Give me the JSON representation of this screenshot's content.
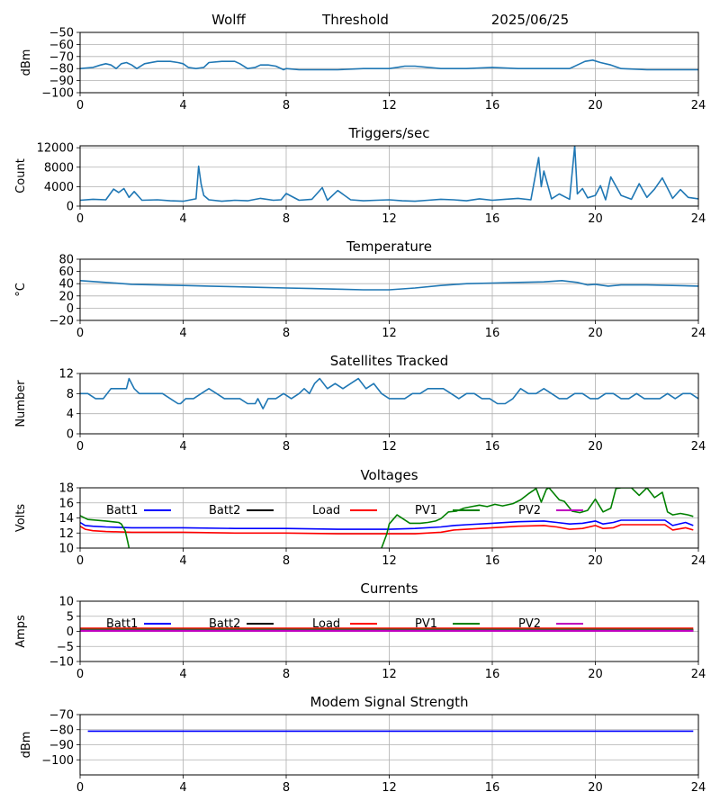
{
  "header": {
    "station": "Wolff",
    "mode": "Threshold",
    "date": "2025/06/25"
  },
  "colors": {
    "series_default": "#1f77b4",
    "batt1": "#0000ff",
    "batt2": "#000000",
    "load": "#ff0000",
    "pv1": "#008000",
    "pv2": "#bf00bf",
    "grid": "#b0b0b0"
  },
  "chart_data": [
    {
      "id": "signal",
      "type": "line",
      "title": "",
      "xlabel": "",
      "ylabel": "dBm",
      "xlim": [
        0,
        24
      ],
      "ylim": [
        -100,
        -50
      ],
      "xticks": [
        0,
        4,
        8,
        12,
        16,
        20,
        24
      ],
      "yticks": [
        -100,
        -90,
        -80,
        -70,
        -60,
        -50
      ],
      "grid": true,
      "series": [
        {
          "name": "",
          "color": "#1f77b4",
          "x": [
            0,
            0.5,
            0.8,
            1.0,
            1.2,
            1.4,
            1.6,
            1.8,
            2.0,
            2.2,
            2.5,
            3.0,
            3.5,
            3.8,
            4.0,
            4.2,
            4.5,
            4.8,
            5.0,
            5.5,
            6.0,
            6.2,
            6.5,
            6.8,
            7.0,
            7.3,
            7.6,
            7.9,
            8.0,
            8.5,
            9,
            10,
            11,
            12,
            12.3,
            12.6,
            13,
            14,
            15,
            16,
            17,
            18,
            19,
            19.3,
            19.6,
            19.9,
            20.2,
            20.6,
            21,
            22,
            23,
            24
          ],
          "y": [
            -80,
            -79,
            -77,
            -76,
            -77,
            -80,
            -76,
            -75,
            -77,
            -80,
            -76,
            -74,
            -74,
            -75,
            -76,
            -79,
            -80,
            -79,
            -75,
            -74,
            -74,
            -76,
            -80,
            -79,
            -77,
            -77,
            -78,
            -81,
            -80,
            -81,
            -81,
            -81,
            -80,
            -80,
            -79,
            -78,
            -78,
            -80,
            -80,
            -79,
            -80,
            -80,
            -80,
            -77,
            -74,
            -73,
            -75,
            -77,
            -80,
            -81,
            -81,
            -81
          ]
        }
      ]
    },
    {
      "id": "triggers",
      "type": "line",
      "title": "Triggers/sec",
      "xlabel": "",
      "ylabel": "Count",
      "xlim": [
        0,
        24
      ],
      "ylim": [
        0,
        12400
      ],
      "xticks": [
        0,
        4,
        8,
        12,
        16,
        20,
        24
      ],
      "yticks": [
        0,
        4000,
        8000,
        12000
      ],
      "grid": true,
      "series": [
        {
          "name": "",
          "color": "#1f77b4",
          "x": [
            0,
            0.5,
            1.0,
            1.3,
            1.5,
            1.7,
            1.9,
            2.1,
            2.4,
            3,
            3.5,
            4,
            4.5,
            4.6,
            4.7,
            4.8,
            5.0,
            5.5,
            6,
            6.5,
            7,
            7.5,
            7.8,
            8,
            8.5,
            9,
            9.4,
            9.6,
            10,
            10.5,
            11,
            11.5,
            12,
            12.5,
            13,
            13.5,
            14,
            14.5,
            15,
            15.5,
            16,
            16.5,
            17,
            17.5,
            17.8,
            17.9,
            18.0,
            18.3,
            18.6,
            19.0,
            19.2,
            19.3,
            19.5,
            19.7,
            20,
            20.2,
            20.4,
            20.6,
            21,
            21.4,
            21.7,
            22,
            22.3,
            22.6,
            23,
            23.3,
            23.6,
            24
          ],
          "y": [
            1200,
            1400,
            1300,
            3500,
            2800,
            3600,
            1800,
            3000,
            1200,
            1300,
            1100,
            1000,
            1500,
            8200,
            4500,
            2200,
            1300,
            1000,
            1200,
            1100,
            1600,
            1200,
            1300,
            2600,
            1200,
            1400,
            3800,
            1200,
            3200,
            1300,
            1100,
            1200,
            1300,
            1100,
            1000,
            1200,
            1400,
            1300,
            1100,
            1500,
            1200,
            1400,
            1600,
            1300,
            10000,
            4000,
            7200,
            1500,
            2500,
            1400,
            12400,
            2500,
            3600,
            1700,
            2200,
            4200,
            1300,
            6000,
            2200,
            1400,
            4600,
            1800,
            3500,
            5800,
            1600,
            3400,
            1800,
            1500
          ]
        }
      ]
    },
    {
      "id": "temperature",
      "type": "line",
      "title": "Temperature",
      "xlabel": "",
      "ylabel": "°C",
      "xlim": [
        0,
        24
      ],
      "ylim": [
        -20,
        80
      ],
      "xticks": [
        0,
        4,
        8,
        12,
        16,
        20,
        24
      ],
      "yticks": [
        -20,
        0,
        20,
        40,
        60,
        80
      ],
      "grid": true,
      "series": [
        {
          "name": "",
          "color": "#1f77b4",
          "x": [
            0,
            1,
            2,
            3,
            4,
            5,
            6,
            7,
            8,
            9,
            10,
            11,
            12,
            13,
            14,
            15,
            16,
            17,
            18,
            18.7,
            19.3,
            19.7,
            20,
            20.5,
            21,
            22,
            23,
            24
          ],
          "y": [
            45,
            42,
            39,
            38,
            37,
            36,
            35,
            34,
            33,
            32,
            31,
            30,
            30,
            33,
            37,
            40,
            41,
            42,
            43,
            45,
            42,
            38,
            39,
            36,
            38,
            38,
            37,
            36
          ]
        }
      ]
    },
    {
      "id": "satellites",
      "type": "line",
      "title": "Satellites Tracked",
      "xlabel": "",
      "ylabel": "Number",
      "xlim": [
        0,
        24
      ],
      "ylim": [
        0,
        12
      ],
      "xticks": [
        0,
        4,
        8,
        12,
        16,
        20,
        24
      ],
      "yticks": [
        0,
        4,
        8,
        12
      ],
      "grid": true,
      "series": [
        {
          "name": "",
          "color": "#1f77b4",
          "x": [
            0,
            0.3,
            0.6,
            0.9,
            1.2,
            1.5,
            1.8,
            1.9,
            2.1,
            2.3,
            2.6,
            2.9,
            3.2,
            3.5,
            3.8,
            3.9,
            4.1,
            4.4,
            4.7,
            5.0,
            5.3,
            5.6,
            5.9,
            6.2,
            6.5,
            6.8,
            6.9,
            7.1,
            7.3,
            7.6,
            7.9,
            8.2,
            8.5,
            8.7,
            8.9,
            9.1,
            9.3,
            9.6,
            9.9,
            10.2,
            10.5,
            10.8,
            11.1,
            11.4,
            11.7,
            12.0,
            12.3,
            12.6,
            12.9,
            13.2,
            13.5,
            13.8,
            14.1,
            14.4,
            14.7,
            15.0,
            15.3,
            15.6,
            15.9,
            16.2,
            16.5,
            16.8,
            17.1,
            17.4,
            17.7,
            18.0,
            18.3,
            18.6,
            18.9,
            19.2,
            19.5,
            19.8,
            20.1,
            20.4,
            20.7,
            21.0,
            21.3,
            21.6,
            21.9,
            22.2,
            22.5,
            22.8,
            23.1,
            23.4,
            23.7,
            24
          ],
          "y": [
            8,
            8,
            7,
            7,
            9,
            9,
            9,
            11,
            9,
            8,
            8,
            8,
            8,
            7,
            6,
            6,
            7,
            7,
            8,
            9,
            8,
            7,
            7,
            7,
            6,
            6,
            7,
            5,
            7,
            7,
            8,
            7,
            8,
            9,
            8,
            10,
            11,
            9,
            10,
            9,
            10,
            11,
            9,
            10,
            8,
            7,
            7,
            7,
            8,
            8,
            9,
            9,
            9,
            8,
            7,
            8,
            8,
            7,
            7,
            6,
            6,
            7,
            9,
            8,
            8,
            9,
            8,
            7,
            7,
            8,
            8,
            7,
            7,
            8,
            8,
            7,
            7,
            8,
            7,
            7,
            7,
            8,
            7,
            8,
            8,
            7
          ]
        }
      ]
    },
    {
      "id": "voltages",
      "type": "line",
      "title": "Voltages",
      "xlabel": "",
      "ylabel": "Volts",
      "xlim": [
        0,
        24
      ],
      "ylim": [
        10,
        18
      ],
      "xticks": [
        0,
        4,
        8,
        12,
        16,
        20,
        24
      ],
      "yticks": [
        10,
        12,
        14,
        16,
        18
      ],
      "grid": true,
      "legend": "inline-top",
      "series": [
        {
          "name": "Batt1",
          "color": "#0000ff",
          "x": [
            0,
            0.2,
            0.5,
            1,
            2,
            4,
            6,
            8,
            10,
            12,
            13,
            14,
            14.5,
            15,
            16,
            17,
            18,
            18.5,
            19,
            19.5,
            20,
            20.3,
            20.7,
            21,
            22,
            22.7,
            23,
            23.5,
            23.8
          ],
          "y": [
            13.4,
            13.0,
            12.9,
            12.8,
            12.7,
            12.7,
            12.6,
            12.6,
            12.5,
            12.5,
            12.6,
            12.8,
            13.0,
            13.1,
            13.3,
            13.5,
            13.6,
            13.4,
            13.2,
            13.3,
            13.6,
            13.2,
            13.4,
            13.7,
            13.7,
            13.7,
            13.0,
            13.4,
            13.0
          ]
        },
        {
          "name": "Batt2",
          "color": "#000000",
          "x": [],
          "y": []
        },
        {
          "name": "Load",
          "color": "#ff0000",
          "x": [
            0,
            0.2,
            0.5,
            1,
            2,
            4,
            6,
            8,
            10,
            12,
            13,
            14,
            14.5,
            15,
            16,
            17,
            18,
            18.5,
            19,
            19.5,
            20,
            20.3,
            20.7,
            21,
            22,
            22.7,
            23,
            23.5,
            23.8
          ],
          "y": [
            12.9,
            12.5,
            12.3,
            12.2,
            12.1,
            12.1,
            12.0,
            12.0,
            11.9,
            11.9,
            11.9,
            12.1,
            12.4,
            12.5,
            12.7,
            12.9,
            13.0,
            12.8,
            12.5,
            12.6,
            13.0,
            12.6,
            12.7,
            13.1,
            13.1,
            13.1,
            12.4,
            12.7,
            12.4
          ]
        },
        {
          "name": "PV1",
          "color": "#008000",
          "x": [
            0,
            0.3,
            1,
            1.5,
            1.6,
            1.75,
            1.85,
            1.9
          ],
          "y": [
            14.3,
            13.8,
            13.6,
            13.4,
            13.2,
            12.3,
            10.8,
            10
          ],
          "x2": [
            11.7,
            11.9,
            12.0,
            12.3,
            12.8,
            13.2,
            13.5,
            13.8,
            14.0,
            14.3,
            14.6,
            14.9,
            15.2,
            15.5,
            15.8,
            16.1,
            16.4,
            16.8,
            17.1,
            17.4,
            17.7,
            17.9,
            18.1,
            18.2,
            18.6,
            18.8,
            19.1,
            19.4,
            19.7,
            20.0,
            20.3,
            20.6,
            20.8,
            21.0,
            21.4,
            21.7,
            22.0,
            22.3,
            22.6,
            22.8,
            23.0,
            23.3,
            23.6,
            23.8
          ],
          "y2": [
            10,
            11.8,
            13.2,
            14.4,
            13.3,
            13.3,
            13.4,
            13.6,
            13.9,
            14.8,
            14.9,
            15.3,
            15.5,
            15.7,
            15.5,
            15.8,
            15.6,
            15.9,
            16.4,
            17.2,
            17.9,
            16.1,
            17.8,
            18.0,
            16.4,
            16.2,
            14.9,
            14.7,
            15.0,
            16.5,
            14.8,
            15.3,
            17.9,
            18.0,
            18.0,
            17.0,
            18.0,
            16.7,
            17.4,
            14.8,
            14.4,
            14.6,
            14.4,
            14.2
          ]
        },
        {
          "name": "PV2",
          "color": "#bf00bf",
          "x": [],
          "y": []
        }
      ]
    },
    {
      "id": "currents",
      "type": "line",
      "title": "Currents",
      "xlabel": "",
      "ylabel": "Amps",
      "xlim": [
        0,
        24
      ],
      "ylim": [
        -10,
        10
      ],
      "xticks": [
        0,
        4,
        8,
        12,
        16,
        20,
        24
      ],
      "yticks": [
        -10,
        -5,
        0,
        5,
        10
      ],
      "grid": true,
      "legend": "inline-top",
      "series": [
        {
          "name": "Batt1",
          "color": "#0000ff",
          "x": [
            0,
            23.8
          ],
          "y": [
            0.4,
            0.4
          ]
        },
        {
          "name": "Batt2",
          "color": "#000000",
          "x": [
            0,
            23.8
          ],
          "y": [
            0.3,
            0.3
          ]
        },
        {
          "name": "Load",
          "color": "#ff0000",
          "x": [
            0,
            23.8
          ],
          "y": [
            0.9,
            0.9
          ]
        },
        {
          "name": "PV1",
          "color": "#008000",
          "x": [
            0,
            23.8
          ],
          "y": [
            0.5,
            0.5
          ]
        },
        {
          "name": "PV2",
          "color": "#bf00bf",
          "x": [
            0,
            23.8
          ],
          "y": [
            0.2,
            0.2
          ]
        }
      ]
    },
    {
      "id": "modem",
      "type": "line",
      "title": "Modem Signal Strength",
      "xlabel": "",
      "ylabel": "dBm",
      "xlim": [
        0,
        24
      ],
      "ylim": [
        -110,
        -70
      ],
      "xticks": [
        0,
        4,
        8,
        12,
        16,
        20,
        24
      ],
      "yticks": [
        -100,
        -90,
        -80,
        -70
      ],
      "grid": true,
      "series": [
        {
          "name": "",
          "color": "#0000ff",
          "x": [
            0.3,
            23.8
          ],
          "y": [
            -81,
            -81
          ]
        }
      ]
    }
  ]
}
